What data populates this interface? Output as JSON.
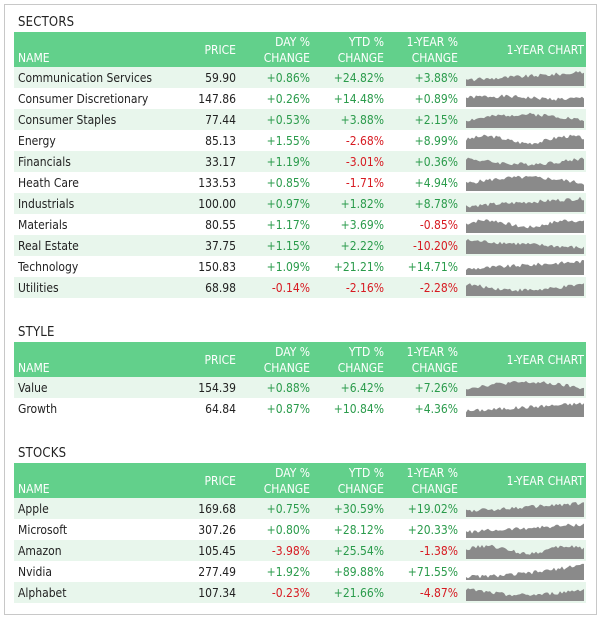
{
  "colors": {
    "header_bg": "#62d08b",
    "row_alt_bg": "#e8f6ec",
    "positive": "#2a9b4b",
    "negative": "#d71a21",
    "sparkline": "#8a8a8a"
  },
  "headers": {
    "name": "NAME",
    "price": "PRICE",
    "day_line1": "DAY %",
    "day_line2": "CHANGE",
    "ytd_line1": "YTD %",
    "ytd_line2": "CHANGE",
    "year_line1": "1-YEAR %",
    "year_line2": "CHANGE",
    "chart": "1-YEAR CHART"
  },
  "sections": [
    {
      "title": "SECTORS",
      "rows": [
        {
          "name": "Communication Services",
          "price": "59.90",
          "day": "+0.86%",
          "ytd": "+24.82%",
          "year": "+3.88%",
          "spark": "trend-up"
        },
        {
          "name": "Consumer Discretionary",
          "price": "147.86",
          "day": "+0.26%",
          "ytd": "+14.48%",
          "year": "+0.89%",
          "spark": "flat-volatile"
        },
        {
          "name": "Consumer Staples",
          "price": "77.44",
          "day": "+0.53%",
          "ytd": "+3.88%",
          "year": "+2.15%",
          "spark": "hump"
        },
        {
          "name": "Energy",
          "price": "85.13",
          "day": "+1.55%",
          "ytd": "-2.68%",
          "year": "+8.99%",
          "spark": "volatile"
        },
        {
          "name": "Financials",
          "price": "33.17",
          "day": "+1.19%",
          "ytd": "-3.01%",
          "year": "+0.36%",
          "spark": "dip"
        },
        {
          "name": "Heath Care",
          "price": "133.53",
          "day": "+0.85%",
          "ytd": "-1.71%",
          "year": "+4.94%",
          "spark": "hump"
        },
        {
          "name": "Industrials",
          "price": "100.00",
          "day": "+0.97%",
          "ytd": "+1.82%",
          "year": "+8.78%",
          "spark": "trend-up"
        },
        {
          "name": "Materials",
          "price": "80.55",
          "day": "+1.17%",
          "ytd": "+3.69%",
          "year": "-0.85%",
          "spark": "volatile"
        },
        {
          "name": "Real Estate",
          "price": "37.75",
          "day": "+1.15%",
          "ytd": "+2.22%",
          "year": "-10.20%",
          "spark": "down"
        },
        {
          "name": "Technology",
          "price": "150.83",
          "day": "+1.09%",
          "ytd": "+21.21%",
          "year": "+14.71%",
          "spark": "trend-up"
        },
        {
          "name": "Utilities",
          "price": "68.98",
          "day": "-0.14%",
          "ytd": "-2.16%",
          "year": "-2.28%",
          "spark": "dip"
        }
      ]
    },
    {
      "title": "STYLE",
      "rows": [
        {
          "name": "Value",
          "price": "154.39",
          "day": "+0.88%",
          "ytd": "+6.42%",
          "year": "+7.26%",
          "spark": "hump"
        },
        {
          "name": "Growth",
          "price": "64.84",
          "day": "+0.87%",
          "ytd": "+10.84%",
          "year": "+4.36%",
          "spark": "trend-up"
        }
      ]
    },
    {
      "title": "STOCKS",
      "rows": [
        {
          "name": "Apple",
          "price": "169.68",
          "day": "+0.75%",
          "ytd": "+30.59%",
          "year": "+19.02%",
          "spark": "trend-up"
        },
        {
          "name": "Microsoft",
          "price": "307.26",
          "day": "+0.80%",
          "ytd": "+28.12%",
          "year": "+20.33%",
          "spark": "trend-up"
        },
        {
          "name": "Amazon",
          "price": "105.45",
          "day": "-3.98%",
          "ytd": "+25.54%",
          "year": "-1.38%",
          "spark": "volatile"
        },
        {
          "name": "Nvidia",
          "price": "277.49",
          "day": "+1.92%",
          "ytd": "+89.88%",
          "year": "+71.55%",
          "spark": "strong-up"
        },
        {
          "name": "Alphabet",
          "price": "107.34",
          "day": "-0.23%",
          "ytd": "+21.66%",
          "year": "-4.87%",
          "spark": "dip"
        }
      ]
    }
  ]
}
